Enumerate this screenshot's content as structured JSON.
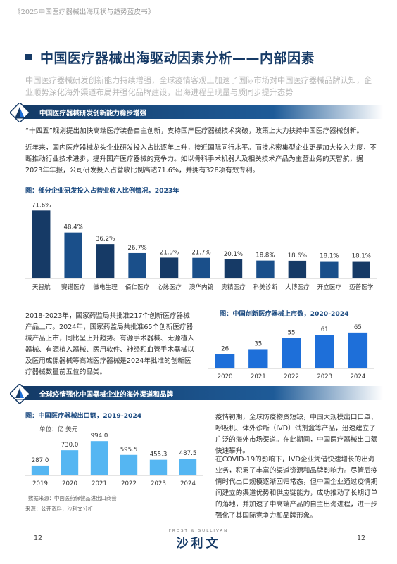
{
  "header": {
    "book_title": "《2025中国医疗器械出海现状与趋势蓝皮书》"
  },
  "page": {
    "title": "中国医疗器械出海驱动因素分析——内部因素",
    "subtitle": "中国医疗器械研发创新能力持续增强，全球疫情客观上加速了国际市场对中国医疗器械品牌认知，企业顺势深化海外渠道布局并强化品牌建设，出海进程呈现量与质同步提升态势"
  },
  "section1": {
    "heading": "中国医疗器械研发创新能力稳步增强",
    "para1": "“十四五”规划提出加快高端医疗装备自主创新，支持国产医疗器械技术突破，政策上大力扶持中国医疗器械创新。",
    "para2": "近年来，国内医疗器械龙头企业研发投入占比逐年上升，接近国际同行水平。而技术密集型企业更是加大投入力度，不断推动行业技术进步，提升国产医疗器械的竞争力。如以骨科手术机器人及相关技术产品为主营业务的天智航，据2023年年报，公司研发投入占营收比例高达71.6%，并拥有328项有效专利。",
    "para3": "2018-2023年，国家药监局共批准217个创新医疗器械产品上市。2024年，国家药监局共批准65个创新医疗器械产品上市，同比呈上升趋势。有源手术器械、无源植入器械、有源植入器械、医用软件、神经和血管手术器械以及医用成像器械等高端医疗器械是2024年批准的创新医疗器械数量前五位的品类。"
  },
  "section2": {
    "heading": "全球疫情强化中国器械企业的海外渠道和品牌",
    "para1": "疫情初期，全球防疫物资短缺，中国大规模出口口罩、呼吸机、体外诊断（IVD）试剂盒等产品，迅速建立了广泛的海外市场渠道。在此期间，中国医疗器械出口额快速攀升。",
    "para2": "在COVID-19的影响下，IVD企业凭借快速增长的出海业务，积累了丰富的渠道资源和品牌影响力。尽管后疫情时代出口规模逐渐回归常态，但中国企业通过疫情期间建立的渠道优势和供应链能力，成功推动了长期订单的落地，并加速了中高端产品的自主出海进程，进一步强化了其国际竞争力和品牌形象。"
  },
  "chart_data": [
    {
      "type": "bar",
      "title": "图：部分企业研发投入占营业收入比例情况，2023年",
      "categories": [
        "天智航",
        "赛诺医疗",
        "微电生理",
        "佰仁医疗",
        "心脉医疗",
        "澳华内镜",
        "奥精医疗",
        "科美诊断",
        "大博医疗",
        "开立医疗",
        "迈普医学"
      ],
      "values": [
        71.6,
        48.4,
        36.2,
        26.7,
        21.9,
        21.7,
        20.1,
        18.8,
        18.6,
        18.1,
        18.1
      ],
      "value_labels": [
        "71.6%",
        "48.4%",
        "36.2%",
        "26.7%",
        "21.9%",
        "21.7%",
        "20.1%",
        "18.8%",
        "18.6%",
        "18.1%",
        "18.1%"
      ],
      "colors": [
        "#163a66",
        "#1a4f8a"
      ],
      "ylim": [
        0,
        80
      ]
    },
    {
      "type": "bar",
      "title": "图：中国创新医疗器械上市数，2020-2024",
      "categories": [
        "2020",
        "2021",
        "2022",
        "2023",
        "2024"
      ],
      "values": [
        26,
        35,
        55,
        61,
        65
      ],
      "value_labels": [
        "26",
        "35",
        "55",
        "61",
        "65"
      ],
      "colors": [
        "#1e6fd9"
      ],
      "ylim": [
        0,
        75
      ]
    },
    {
      "type": "bar",
      "title": "图：中国医疗器械出口额，2019-2024",
      "unit": "单位：亿 美元",
      "categories": [
        "2019",
        "2020",
        "2021",
        "2022",
        "2023",
        "2024"
      ],
      "values": [
        287.0,
        730.0,
        994.0,
        595.5,
        455.3,
        487.5
      ],
      "value_labels": [
        "287.0",
        "730.0",
        "994.0",
        "595.5",
        "455.3",
        "487.5"
      ],
      "colors": [
        "#55b6f2"
      ],
      "ylim": [
        0,
        1100
      ],
      "source": "数据来源：中国医药保健品进出口商会"
    }
  ],
  "footer": {
    "source": "来源：公开资料，沙利文分析",
    "page_left": "12",
    "page_right": "12",
    "brand_small": "FROST & SULLIVAN",
    "brand_logo": "沙利文"
  }
}
